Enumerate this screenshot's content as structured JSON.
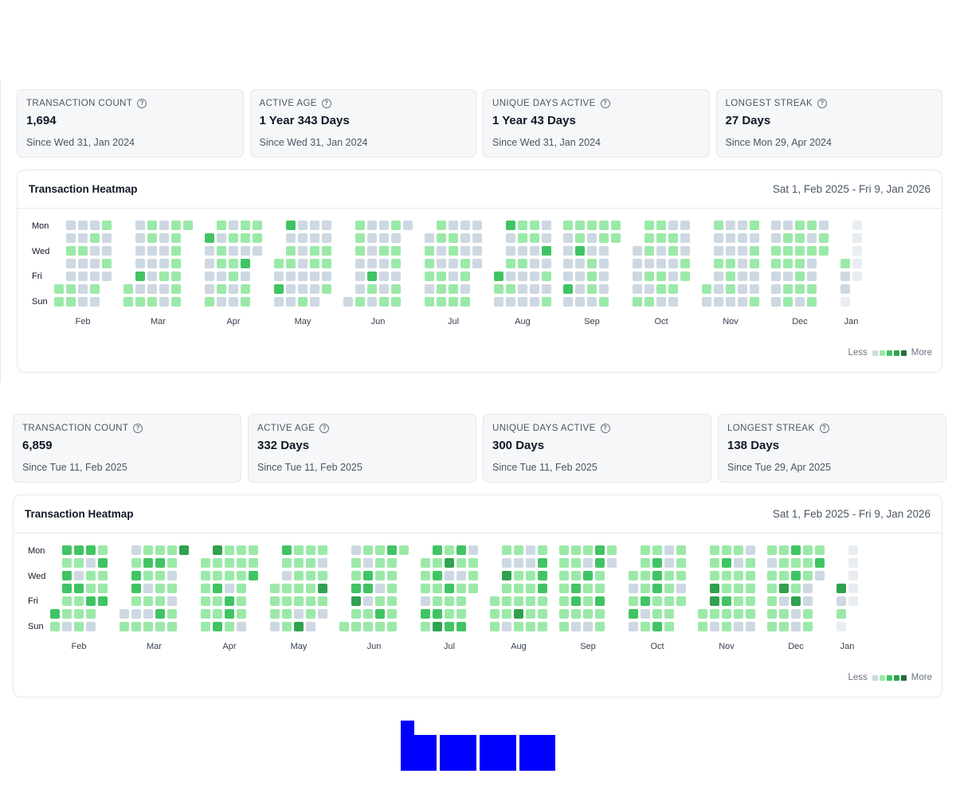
{
  "panels": [
    {
      "stats": [
        {
          "label": "TRANSACTION COUNT",
          "value": "1,694",
          "since": "Since Wed 31, Jan 2024"
        },
        {
          "label": "ACTIVE AGE",
          "value": "1 Year 343 Days",
          "since": "Since Wed 31, Jan 2024"
        },
        {
          "label": "UNIQUE DAYS ACTIVE",
          "value": "1 Year 43 Days",
          "since": "Since Wed 31, Jan 2024"
        },
        {
          "label": "LONGEST STREAK",
          "value": "27 Days",
          "since": "Since Mon 29, Apr 2024"
        }
      ],
      "heatmap": {
        "title": "Transaction Heatmap",
        "range": "Sat 1, Feb 2025 - Fri 9, Jan 2026",
        "day_labels": [
          "Mon",
          "Wed",
          "Fri",
          "Sun"
        ],
        "months": [
          "Feb",
          "Mar",
          "Apr",
          "May",
          "Jun",
          "Jul",
          "Aug",
          "Sep",
          "Oct",
          "Nov",
          "Dec",
          "Jan"
        ],
        "legend_less": "Less",
        "legend_more": "More"
      }
    },
    {
      "stats": [
        {
          "label": "TRANSACTION COUNT",
          "value": "6,859",
          "since": "Since Tue 11, Feb 2025"
        },
        {
          "label": "ACTIVE AGE",
          "value": "332 Days",
          "since": "Since Tue 11, Feb 2025"
        },
        {
          "label": "UNIQUE DAYS ACTIVE",
          "value": "300 Days",
          "since": "Since Tue 11, Feb 2025"
        },
        {
          "label": "LONGEST STREAK",
          "value": "138 Days",
          "since": "Since Tue 29, Apr 2025"
        }
      ],
      "heatmap": {
        "title": "Transaction Heatmap",
        "range": "Sat 1, Feb 2025 - Fri 9, Jan 2026",
        "day_labels": [
          "Mon",
          "Wed",
          "Fri",
          "Sun"
        ],
        "months": [
          "Feb",
          "Mar",
          "Apr",
          "May",
          "Jun",
          "Jul",
          "Aug",
          "Sep",
          "Oct",
          "Nov",
          "Dec",
          "Jan"
        ],
        "legend_less": "Less",
        "legend_more": "More"
      }
    }
  ],
  "colors": {
    "level0": "#cdd8e2",
    "level1": "#9be9a8",
    "level2": "#40c463",
    "level3": "#30a14e",
    "level4": "#216e39",
    "future": "#e8edf2",
    "logo": "#0000ff"
  },
  "icons": {
    "help": "question-circle-icon"
  }
}
